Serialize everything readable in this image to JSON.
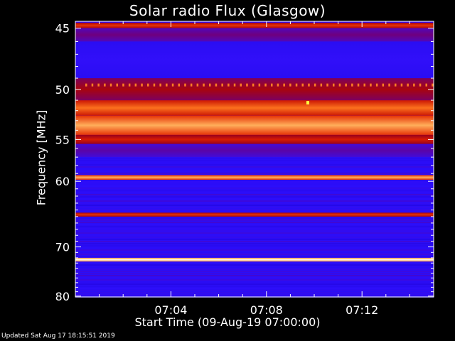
{
  "chart_data": {
    "type": "heatmap",
    "title": "Solar radio Flux (Glasgow)",
    "xlabel": "Start Time (09-Aug-19 07:00:00)",
    "ylabel": "Frequency [MHz]",
    "x_start": "07:00:00",
    "x_end": "07:15:00",
    "x_tick_labels": [
      "07:04",
      "07:08",
      "07:12"
    ],
    "x_tick_minutes": [
      4,
      8,
      12
    ],
    "y_range_mhz": [
      44.5,
      80.2
    ],
    "y_axis_inverted": true,
    "y_scale": "reciprocal",
    "y_tick_values": [
      45,
      50,
      55,
      60,
      70,
      80
    ],
    "colormap": [
      "#1a00c8",
      "#2e10ff",
      "#6a008a",
      "#9e0010",
      "#e02000",
      "#ff7a20",
      "#ffd080",
      "#fffff0"
    ],
    "bands": [
      {
        "mhz_from": 44.6,
        "mhz_to": 45.0,
        "intensity": 0.6
      },
      {
        "mhz_from": 45.0,
        "mhz_to": 46.0,
        "intensity": 0.3
      },
      {
        "mhz_from": 46.0,
        "mhz_to": 49.0,
        "intensity": 0.15
      },
      {
        "mhz_from": 49.0,
        "mhz_to": 51.0,
        "intensity": 0.45
      },
      {
        "mhz_from": 51.0,
        "mhz_to": 52.5,
        "intensity": 0.7
      },
      {
        "mhz_from": 52.5,
        "mhz_to": 54.5,
        "intensity": 0.8
      },
      {
        "mhz_from": 54.5,
        "mhz_to": 55.5,
        "intensity": 0.55
      },
      {
        "mhz_from": 55.5,
        "mhz_to": 57.0,
        "intensity": 0.25
      },
      {
        "mhz_from": 59.2,
        "mhz_to": 59.8,
        "intensity": 0.8
      },
      {
        "mhz_from": 64.4,
        "mhz_to": 65.0,
        "intensity": 0.6
      },
      {
        "mhz_from": 72.0,
        "mhz_to": 72.7,
        "intensity": 1.0
      }
    ]
  },
  "footer": "Updated Sat Aug 17 18:15:51 2019"
}
